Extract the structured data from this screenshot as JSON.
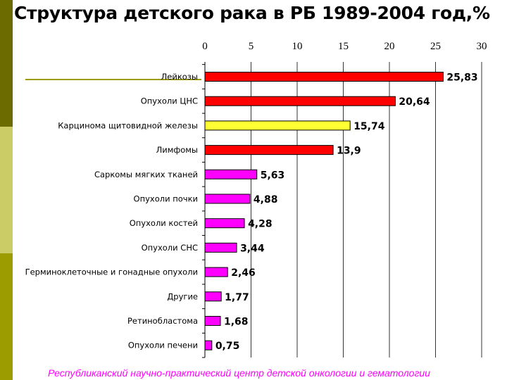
{
  "title": "Структура детского рака в РБ 1989-2004 год,%",
  "footer": "Республиканский научно-практический центр детской онкологии и гематологии",
  "chart_data": {
    "type": "bar",
    "orientation": "horizontal",
    "title": "Структура детского рака в РБ 1989-2004 год,%",
    "xlim": [
      0,
      30
    ],
    "x_ticks": [
      "0",
      "5",
      "10",
      "15",
      "20",
      "25",
      "30"
    ],
    "x_axis_position": "top",
    "grid": "vertical",
    "categories": [
      "Лейкозы",
      "Опухоли ЦНС",
      "Карцинома щитовидной  железы",
      "Лимфомы",
      "Саркомы мягких тканей",
      "Опухоли почки",
      "Опухоли костей",
      "Опухоли СНС",
      "Герминоклеточные и гонадные опухоли",
      "Другие",
      "Ретинобластома",
      "Опухоли печени"
    ],
    "values": [
      25.83,
      20.64,
      15.74,
      13.9,
      5.63,
      4.88,
      4.28,
      3.44,
      2.46,
      1.77,
      1.68,
      0.75
    ],
    "value_labels": [
      "25,83",
      "20,64",
      "15,74",
      "13,9",
      "5,63",
      "4,88",
      "4,28",
      "3,44",
      "2,46",
      "1,77",
      "1,68",
      "0,75"
    ],
    "bar_colors": [
      "#ff0000",
      "#ff0000",
      "#ffff33",
      "#ff0000",
      "#ff00ff",
      "#ff00ff",
      "#ff00ff",
      "#ff00ff",
      "#ff00ff",
      "#ff00ff",
      "#ff00ff",
      "#ff00ff"
    ]
  }
}
